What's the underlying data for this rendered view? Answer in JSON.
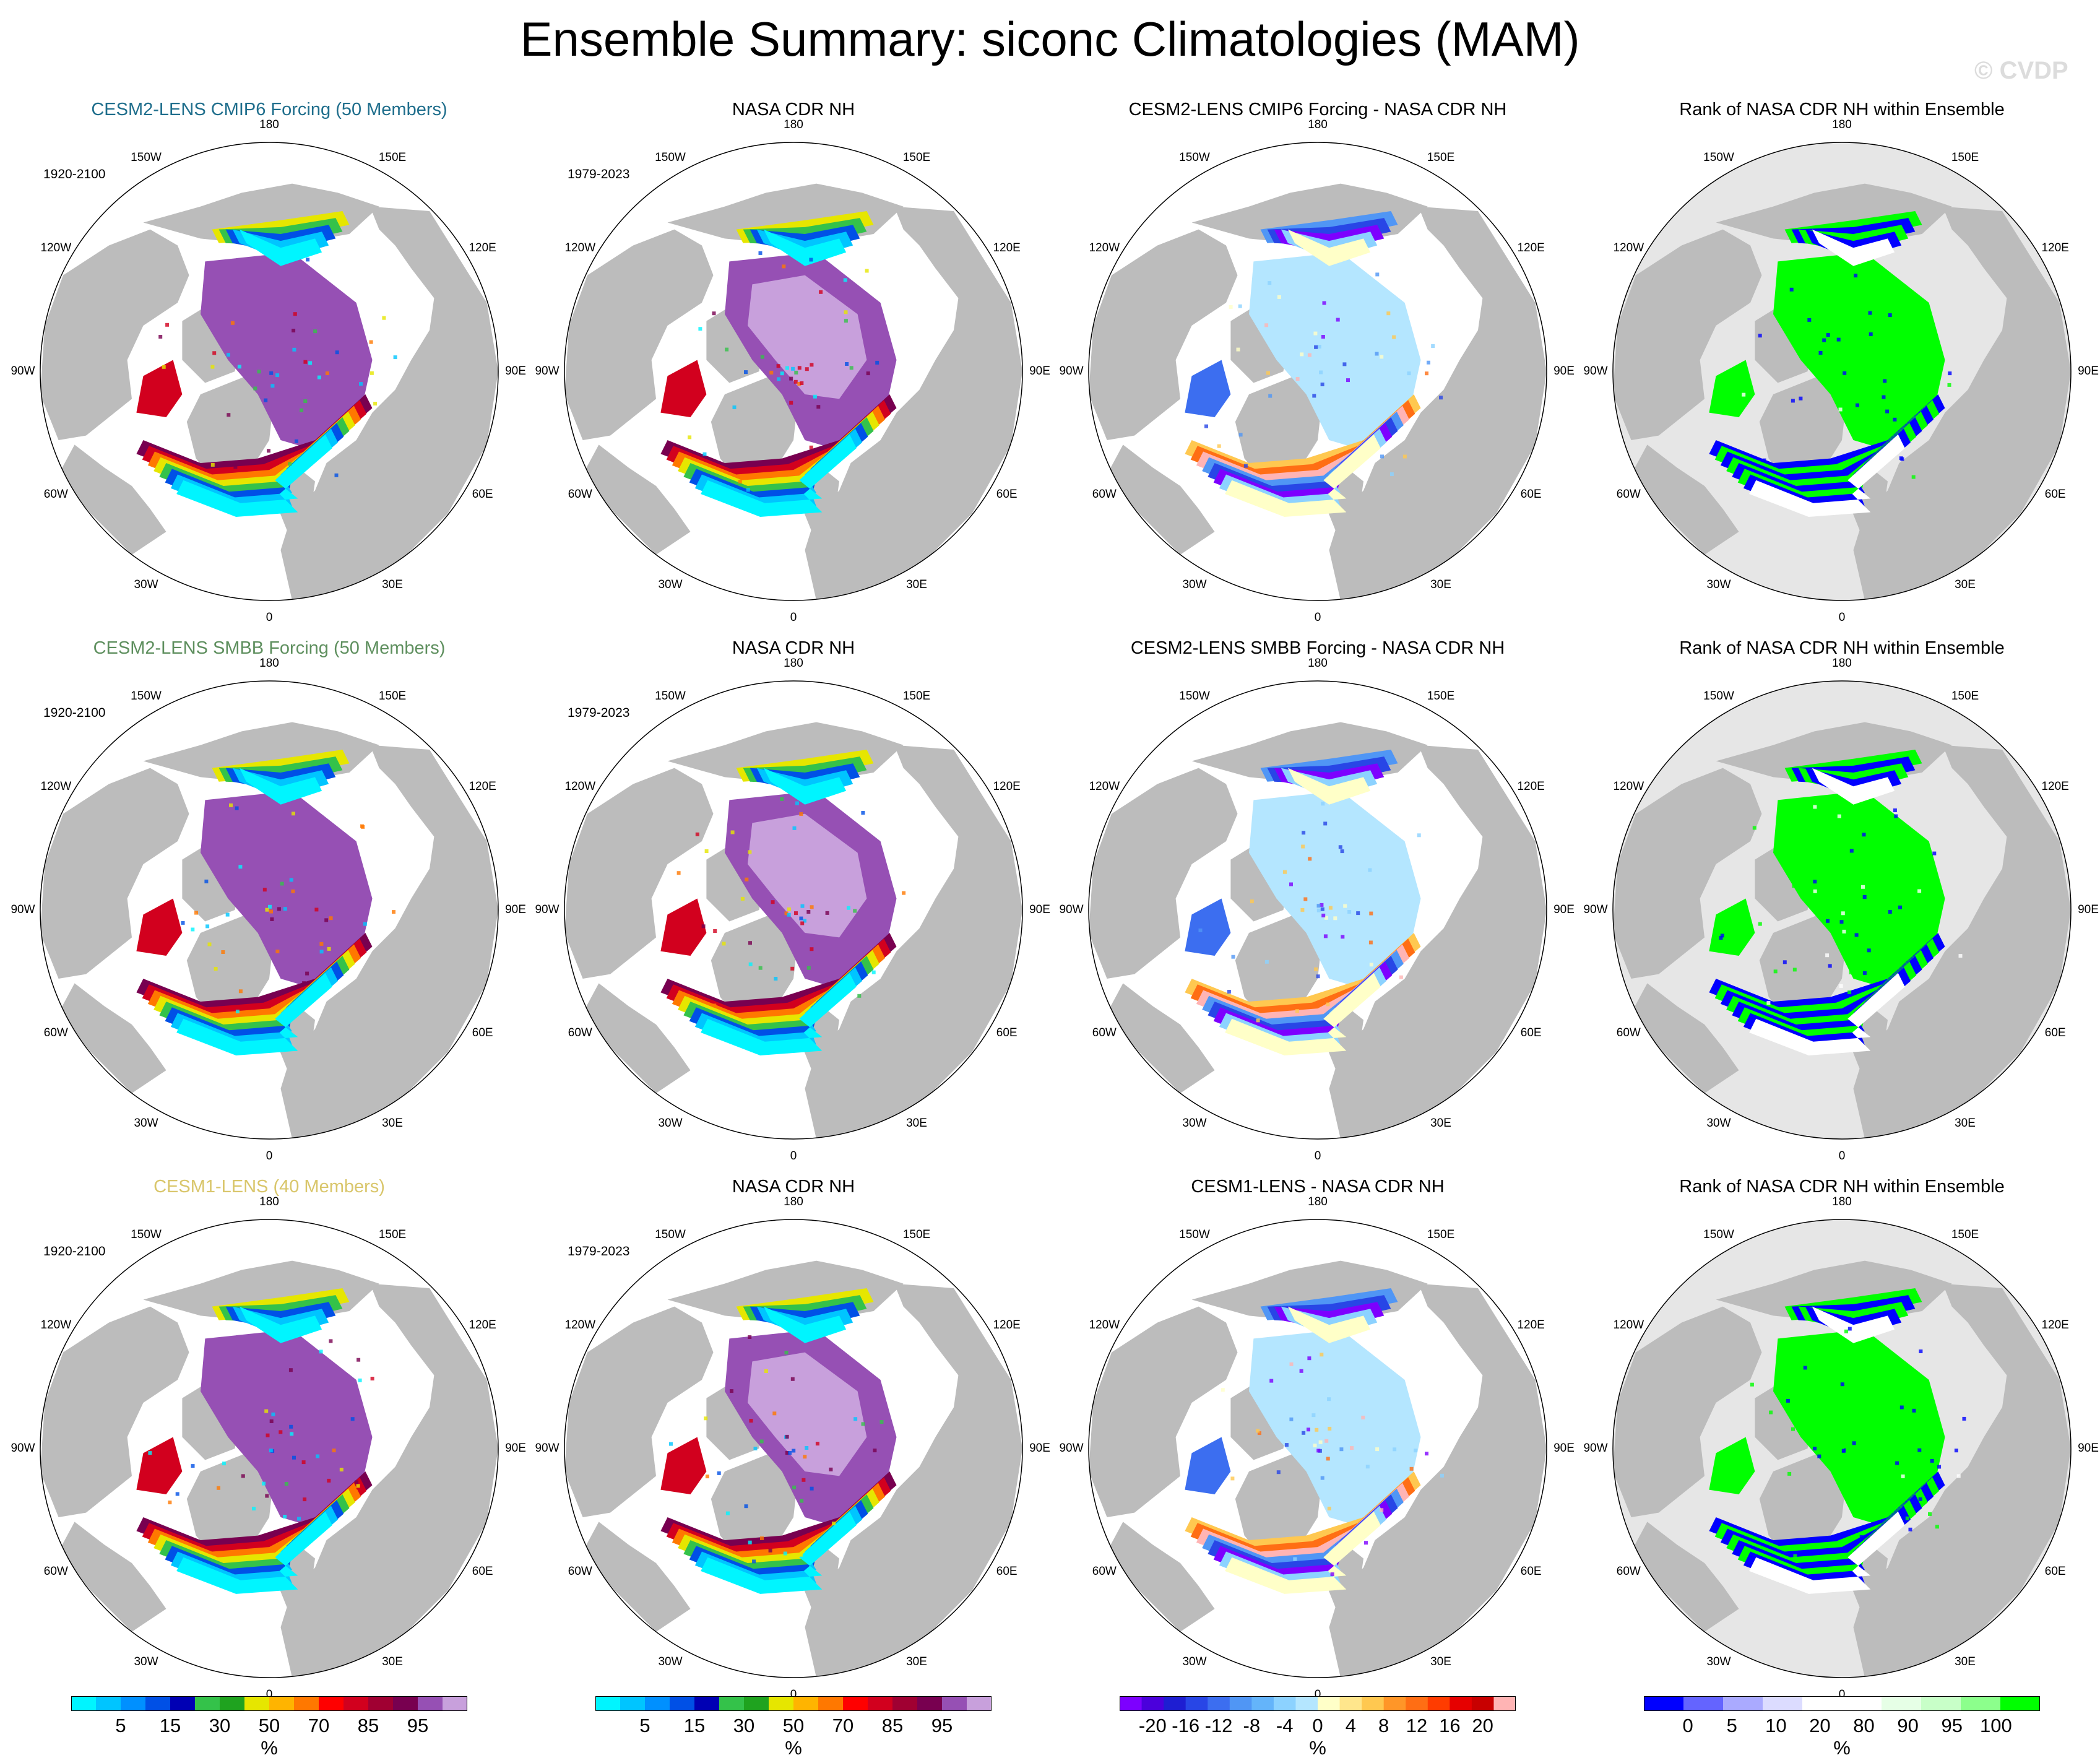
{
  "title": "Ensemble Summary: siconc Climatologies (MAM)",
  "watermark": "© CVDP",
  "colors": {
    "model1_title": "#1f6e8c",
    "model2_title": "#5e8f5e",
    "model3_title": "#d9c66b",
    "land": "#bcbcbc",
    "ocean": "#ffffff",
    "rank_ocean": "#e6e6e6"
  },
  "rows": [
    {
      "panels": [
        {
          "title": "CESM2-LENS CMIP6 Forcing (50 Members)",
          "years": "1920-2100",
          "type": "clim",
          "color_key": "model1_title"
        },
        {
          "title": "NASA CDR NH",
          "years": "1979-2023",
          "type": "obs"
        },
        {
          "title": "CESM2-LENS CMIP6 Forcing - NASA CDR NH",
          "years": "",
          "type": "diff"
        },
        {
          "title": "Rank of NASA CDR NH within Ensemble",
          "years": "",
          "type": "rank"
        }
      ]
    },
    {
      "panels": [
        {
          "title": "CESM2-LENS SMBB Forcing (50 Members)",
          "years": "1920-2100",
          "type": "clim",
          "color_key": "model2_title"
        },
        {
          "title": "NASA CDR NH",
          "years": "1979-2023",
          "type": "obs"
        },
        {
          "title": "CESM2-LENS SMBB Forcing - NASA CDR NH",
          "years": "",
          "type": "diff"
        },
        {
          "title": "Rank of NASA CDR NH within Ensemble",
          "years": "",
          "type": "rank"
        }
      ]
    },
    {
      "panels": [
        {
          "title": "CESM1-LENS (40 Members)",
          "years": "1920-2100",
          "type": "clim",
          "color_key": "model3_title"
        },
        {
          "title": "NASA CDR NH",
          "years": "1979-2023",
          "type": "obs"
        },
        {
          "title": "CESM1-LENS - NASA CDR NH",
          "years": "",
          "type": "diff"
        },
        {
          "title": "Rank of NASA CDR NH within Ensemble",
          "years": "",
          "type": "rank"
        }
      ]
    }
  ],
  "longitude_labels": [
    "180",
    "150E",
    "120E",
    "90E",
    "60E",
    "30E",
    "0",
    "30W",
    "60W",
    "90W",
    "120W",
    "150W"
  ],
  "colorbars": [
    {
      "name": "siconc",
      "unit": "%",
      "colors": [
        "#00f5ff",
        "#00c5ff",
        "#0090ff",
        "#0050e6",
        "#0000b4",
        "#34c24a",
        "#1fa31f",
        "#e6e600",
        "#ffb400",
        "#ff7800",
        "#ff0000",
        "#d2001e",
        "#a00032",
        "#780050",
        "#9650b4",
        "#c8a0dc"
      ],
      "labels": [
        "5",
        "15",
        "30",
        "50",
        "70",
        "85",
        "95"
      ]
    },
    {
      "name": "siconc",
      "unit": "%",
      "colors": [
        "#00f5ff",
        "#00c5ff",
        "#0090ff",
        "#0050e6",
        "#0000b4",
        "#34c24a",
        "#1fa31f",
        "#e6e600",
        "#ffb400",
        "#ff7800",
        "#ff0000",
        "#d2001e",
        "#a00032",
        "#780050",
        "#9650b4",
        "#c8a0dc"
      ],
      "labels": [
        "5",
        "15",
        "30",
        "50",
        "70",
        "85",
        "95"
      ]
    },
    {
      "name": "difference",
      "unit": "%",
      "colors": [
        "#7d00ff",
        "#4b00dc",
        "#1e1ed2",
        "#2846e6",
        "#3c6ef0",
        "#5096f5",
        "#64b4fa",
        "#8cd2ff",
        "#b4e6ff",
        "#ffffc8",
        "#ffe68c",
        "#ffc850",
        "#ff9628",
        "#ff6e14",
        "#ff3c00",
        "#e60000",
        "#c80000",
        "#ffb4b4"
      ],
      "labels": [
        "-20",
        "-16",
        "-12",
        "-8",
        "-4",
        "0",
        "4",
        "8",
        "12",
        "16",
        "20"
      ]
    },
    {
      "name": "rank",
      "unit": "%",
      "colors": [
        "#0000ff",
        "#6464ff",
        "#aaaaff",
        "#dcdcff",
        "#ffffff",
        "#ffffff",
        "#e6ffe6",
        "#c8ffc8",
        "#8cff8c",
        "#00ff00"
      ],
      "labels": [
        "0",
        "5",
        "10",
        "20",
        "80",
        "90",
        "95",
        "100"
      ]
    }
  ]
}
